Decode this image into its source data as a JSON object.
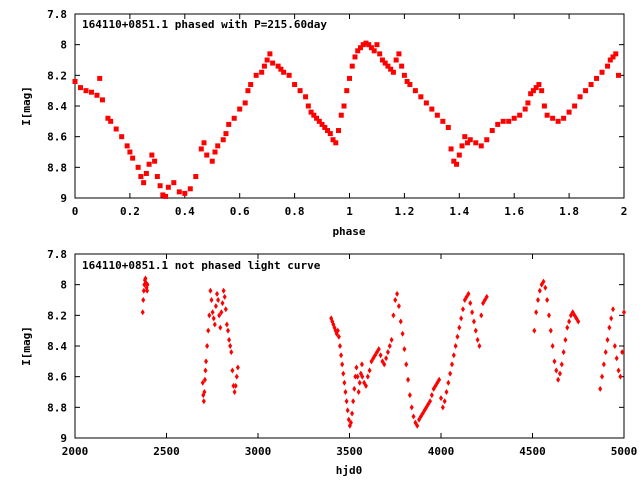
{
  "chart_data": [
    {
      "type": "scatter",
      "title": "164110+0851.1 phased with P=215.60day",
      "xlabel": "phase",
      "ylabel": "I[mag]",
      "xlim": [
        0,
        2
      ],
      "ylim": [
        9,
        7.8
      ],
      "y_inverted": true,
      "xticks": [
        "0",
        "0.2",
        "0.4",
        "0.6",
        "0.8",
        "1",
        "1.2",
        "1.4",
        "1.6",
        "1.8",
        "2"
      ],
      "yticks": [
        "7.8",
        "8",
        "8.2",
        "8.4",
        "8.6",
        "8.8",
        "9"
      ],
      "grid": false,
      "legend": "none",
      "marker": "filled-square",
      "color": "#ff0000",
      "series": [
        {
          "x": [
            0.0,
            0.02,
            0.04,
            0.06,
            0.08,
            0.09,
            0.1,
            0.12,
            0.13,
            0.15,
            0.17,
            0.19,
            0.2,
            0.21,
            0.23,
            0.24,
            0.25,
            0.26,
            0.27,
            0.28,
            0.29,
            0.3,
            0.31,
            0.32,
            0.33,
            0.34,
            0.36,
            0.38,
            0.4,
            0.42,
            0.44,
            0.46,
            0.47,
            0.48,
            0.5,
            0.51,
            0.52,
            0.54,
            0.55,
            0.56,
            0.58,
            0.6,
            0.62,
            0.63,
            0.64,
            0.66,
            0.68,
            0.69,
            0.7,
            0.71,
            0.72,
            0.74,
            0.75,
            0.76,
            0.78,
            0.8,
            0.82,
            0.84,
            0.85,
            0.86,
            0.87,
            0.88,
            0.89,
            0.9,
            0.91,
            0.92,
            0.93,
            0.94,
            0.95,
            0.96,
            0.97,
            0.98,
            0.99,
            1.0,
            1.01,
            1.02,
            1.03,
            1.04,
            1.05,
            1.06,
            1.07,
            1.08,
            1.09,
            1.1,
            1.11,
            1.12,
            1.13,
            1.14,
            1.15,
            1.16,
            1.17,
            1.18,
            1.19,
            1.2,
            1.21,
            1.22,
            1.24,
            1.26,
            1.28,
            1.3,
            1.32,
            1.34,
            1.36,
            1.37,
            1.38,
            1.39,
            1.4,
            1.41,
            1.42,
            1.43,
            1.44,
            1.46,
            1.48,
            1.5,
            1.52,
            1.54,
            1.56,
            1.58,
            1.6,
            1.62,
            1.64,
            1.65,
            1.66,
            1.67,
            1.68,
            1.69,
            1.7,
            1.71,
            1.72,
            1.74,
            1.76,
            1.78,
            1.8,
            1.82,
            1.84,
            1.86,
            1.88,
            1.9,
            1.92,
            1.94,
            1.95,
            1.96,
            1.97,
            1.98
          ],
          "y": [
            8.24,
            8.28,
            8.3,
            8.31,
            8.33,
            8.22,
            8.36,
            8.48,
            8.5,
            8.55,
            8.6,
            8.66,
            8.7,
            8.74,
            8.8,
            8.86,
            8.9,
            8.84,
            8.78,
            8.72,
            8.76,
            8.86,
            8.92,
            8.98,
            8.99,
            8.93,
            8.9,
            8.96,
            8.97,
            8.94,
            8.86,
            8.68,
            8.64,
            8.72,
            8.76,
            8.7,
            8.66,
            8.62,
            8.58,
            8.52,
            8.48,
            8.42,
            8.38,
            8.3,
            8.26,
            8.2,
            8.18,
            8.14,
            8.1,
            8.06,
            8.12,
            8.14,
            8.16,
            8.18,
            8.2,
            8.26,
            8.3,
            8.34,
            8.4,
            8.44,
            8.46,
            8.48,
            8.5,
            8.52,
            8.54,
            8.56,
            8.58,
            8.62,
            8.64,
            8.56,
            8.46,
            8.4,
            8.3,
            8.22,
            8.14,
            8.08,
            8.04,
            8.02,
            8.0,
            7.99,
            8.0,
            8.02,
            8.04,
            8.0,
            8.06,
            8.1,
            8.12,
            8.14,
            8.16,
            8.18,
            8.1,
            8.06,
            8.14,
            8.2,
            8.24,
            8.26,
            8.3,
            8.34,
            8.38,
            8.42,
            8.46,
            8.5,
            8.54,
            8.68,
            8.76,
            8.78,
            8.72,
            8.66,
            8.6,
            8.64,
            8.62,
            8.64,
            8.66,
            8.62,
            8.56,
            8.52,
            8.5,
            8.5,
            8.48,
            8.46,
            8.42,
            8.38,
            8.32,
            8.3,
            8.28,
            8.26,
            8.3,
            8.4,
            8.46,
            8.48,
            8.5,
            8.48,
            8.44,
            8.4,
            8.34,
            8.3,
            8.26,
            8.22,
            8.18,
            8.14,
            8.1,
            8.08,
            8.06,
            8.2
          ]
        }
      ]
    },
    {
      "type": "scatter",
      "title": "164110+0851.1 not phased light curve",
      "xlabel": "hjd0",
      "ylabel": "I[mag]",
      "xlim": [
        2000,
        5000
      ],
      "ylim": [
        9,
        7.8
      ],
      "y_inverted": true,
      "xticks": [
        "2000",
        "2500",
        "3000",
        "3500",
        "4000",
        "4500",
        "5000"
      ],
      "yticks": [
        "7.8",
        "8",
        "8.2",
        "8.4",
        "8.6",
        "8.8",
        "9"
      ],
      "grid": false,
      "legend": "none",
      "marker": "filled-diamond",
      "color": "#ff0000",
      "series": [
        {
          "x": [
            2370,
            2373,
            2376,
            2379,
            2382,
            2385,
            2388,
            2391,
            2394,
            2396,
            2698,
            2701,
            2704,
            2707,
            2710,
            2713,
            2716,
            2722,
            2728,
            2734,
            2740,
            2746,
            2752,
            2758,
            2764,
            2770,
            2776,
            2782,
            2788,
            2794,
            2800,
            2806,
            2812,
            2818,
            2824,
            2830,
            2836,
            2842,
            2848,
            2854,
            2860,
            2866,
            2872,
            2878,
            2884,
            2890,
            3400,
            3406,
            3412,
            3418,
            3424,
            3430,
            3436,
            3442,
            3448,
            3454,
            3460,
            3466,
            3472,
            3478,
            3484,
            3490,
            3496,
            3502,
            3508,
            3514,
            3520,
            3526,
            3532,
            3538,
            3544,
            3550,
            3556,
            3562,
            3568,
            3570,
            3580,
            3590,
            3600,
            3610,
            3620,
            3630,
            3640,
            3650,
            3660,
            3670,
            3680,
            3690,
            3700,
            3710,
            3720,
            3730,
            3740,
            3750,
            3760,
            3770,
            3780,
            3790,
            3800,
            3810,
            3820,
            3830,
            3840,
            3850,
            3860,
            3870,
            3880,
            3890,
            3900,
            3910,
            3920,
            3930,
            3940,
            3950,
            3960,
            3970,
            3980,
            3990,
            4000,
            4010,
            4020,
            4030,
            4040,
            4050,
            4060,
            4070,
            4080,
            4090,
            4100,
            4110,
            4120,
            4130,
            4140,
            4150,
            4160,
            4170,
            4180,
            4190,
            4200,
            4210,
            4220,
            4230,
            4240,
            4250,
            4510,
            4520,
            4530,
            4540,
            4550,
            4560,
            4570,
            4580,
            4590,
            4600,
            4610,
            4620,
            4630,
            4640,
            4650,
            4660,
            4670,
            4680,
            4690,
            4700,
            4710,
            4720,
            4730,
            4740,
            4750,
            4870,
            4880,
            4890,
            4900,
            4910,
            4920,
            4930,
            4940,
            4950,
            4960,
            4970,
            4980,
            4990,
            5000
          ],
          "y": [
            8.18,
            8.1,
            8.04,
            8.0,
            7.97,
            7.96,
            7.99,
            8.02,
            8.04,
            8.0,
            8.64,
            8.72,
            8.76,
            8.7,
            8.62,
            8.56,
            8.5,
            8.4,
            8.3,
            8.2,
            8.04,
            8.1,
            8.18,
            8.22,
            8.26,
            8.14,
            8.06,
            8.1,
            8.2,
            8.28,
            8.18,
            8.12,
            8.04,
            8.08,
            8.16,
            8.26,
            8.3,
            8.36,
            8.4,
            8.44,
            8.56,
            8.66,
            8.7,
            8.66,
            8.6,
            8.54,
            8.22,
            8.24,
            8.26,
            8.28,
            8.3,
            8.32,
            8.3,
            8.34,
            8.4,
            8.46,
            8.52,
            8.58,
            8.64,
            8.7,
            8.76,
            8.82,
            8.88,
            8.92,
            8.9,
            8.84,
            8.76,
            8.68,
            8.6,
            8.54,
            8.6,
            8.7,
            8.64,
            8.58,
            8.52,
            8.6,
            8.64,
            8.66,
            8.6,
            8.56,
            8.5,
            8.48,
            8.46,
            8.44,
            8.42,
            8.46,
            8.5,
            8.52,
            8.48,
            8.44,
            8.4,
            8.36,
            8.2,
            8.1,
            8.06,
            8.14,
            8.24,
            8.32,
            8.42,
            8.52,
            8.62,
            8.72,
            8.8,
            8.86,
            8.9,
            8.92,
            8.88,
            8.86,
            8.84,
            8.82,
            8.8,
            8.78,
            8.76,
            8.72,
            8.68,
            8.66,
            8.64,
            8.62,
            8.74,
            8.8,
            8.76,
            8.7,
            8.64,
            8.58,
            8.52,
            8.46,
            8.4,
            8.34,
            8.28,
            8.22,
            8.16,
            8.1,
            8.08,
            8.06,
            8.12,
            8.18,
            8.24,
            8.3,
            8.36,
            8.4,
            8.2,
            8.12,
            8.1,
            8.08,
            8.3,
            8.18,
            8.1,
            8.04,
            8.0,
            7.98,
            8.02,
            8.1,
            8.2,
            8.3,
            8.4,
            8.5,
            8.56,
            8.62,
            8.58,
            8.52,
            8.44,
            8.36,
            8.28,
            8.24,
            8.2,
            8.18,
            8.2,
            8.22,
            8.24,
            8.68,
            8.6,
            8.52,
            8.44,
            8.36,
            8.28,
            8.22,
            8.16,
            8.4,
            8.48,
            8.56,
            8.6,
            8.44,
            8.18
          ]
        }
      ]
    }
  ]
}
